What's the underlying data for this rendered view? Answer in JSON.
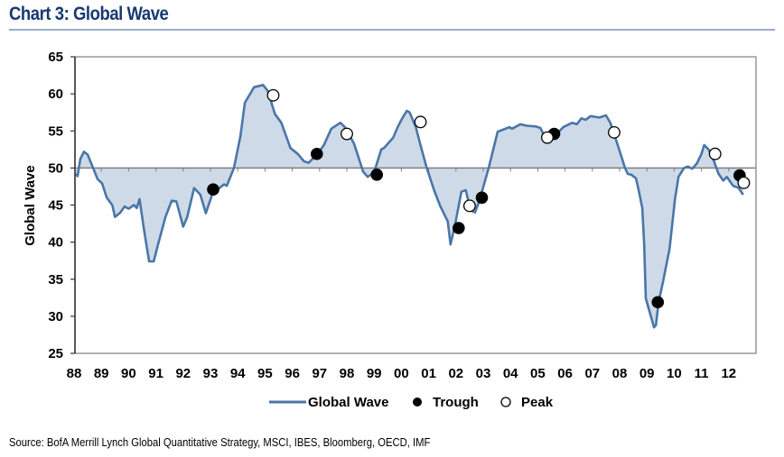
{
  "title": "Chart 3: Global Wave",
  "source": "Source: BofA Merrill Lynch Global Quantitative Strategy, MSCI, IBES, Bloomberg, OECD, IMF",
  "colors": {
    "title": "#17396f",
    "line": "#4a76a8",
    "fill": "#cfdae8",
    "axis": "#8c8c8c",
    "marker_fill_trough": "#000000",
    "marker_fill_peak": "#ffffff"
  },
  "chart_data": {
    "type": "area",
    "title": "Chart 3: Global Wave",
    "xlabel": "",
    "ylabel": "Global Wave",
    "ylim": [
      25,
      65
    ],
    "yticks": [
      25,
      30,
      35,
      40,
      45,
      50,
      55,
      60,
      65
    ],
    "xlim": [
      1988,
      2012.95
    ],
    "xticks": [
      1988,
      1989,
      1990,
      1991,
      1992,
      1993,
      1994,
      1995,
      1996,
      1997,
      1998,
      1999,
      2000,
      2001,
      2002,
      2003,
      2004,
      2005,
      2006,
      2007,
      2008,
      2009,
      2010,
      2011,
      2012
    ],
    "xtick_labels": [
      "88",
      "89",
      "90",
      "91",
      "92",
      "93",
      "94",
      "95",
      "96",
      "97",
      "98",
      "99",
      "00",
      "01",
      "02",
      "03",
      "04",
      "05",
      "06",
      "07",
      "08",
      "09",
      "10",
      "11",
      "12"
    ],
    "baseline": 50,
    "grid": false,
    "legend": {
      "placement": "bottom",
      "entries": [
        "Global Wave",
        "Trough",
        "Peak"
      ]
    },
    "series": [
      {
        "name": "Global Wave",
        "points": [
          [
            1988.03,
            49.2
          ],
          [
            1988.13,
            48.9
          ],
          [
            1988.23,
            51.2
          ],
          [
            1988.36,
            52.2
          ],
          [
            1988.5,
            51.8
          ],
          [
            1988.7,
            50.0
          ],
          [
            1988.86,
            48.5
          ],
          [
            1989.03,
            47.9
          ],
          [
            1989.2,
            46.0
          ],
          [
            1989.4,
            45.0
          ],
          [
            1989.5,
            43.4
          ],
          [
            1989.7,
            44.0
          ],
          [
            1989.85,
            44.8
          ],
          [
            1990.0,
            44.5
          ],
          [
            1990.2,
            45.0
          ],
          [
            1990.3,
            44.6
          ],
          [
            1990.4,
            45.8
          ],
          [
            1990.58,
            41.3
          ],
          [
            1990.75,
            37.4
          ],
          [
            1990.92,
            37.4
          ],
          [
            1991.08,
            39.7
          ],
          [
            1991.35,
            43.4
          ],
          [
            1991.58,
            45.6
          ],
          [
            1991.75,
            45.5
          ],
          [
            1992.0,
            42.1
          ],
          [
            1992.15,
            43.4
          ],
          [
            1992.4,
            47.3
          ],
          [
            1992.63,
            46.4
          ],
          [
            1992.83,
            43.9
          ],
          [
            1993.06,
            46.4
          ],
          [
            1993.23,
            47.0
          ],
          [
            1993.5,
            47.8
          ],
          [
            1993.6,
            47.6
          ],
          [
            1993.86,
            50.0
          ],
          [
            1994.1,
            54.3
          ],
          [
            1994.26,
            58.8
          ],
          [
            1994.6,
            60.9
          ],
          [
            1994.93,
            61.2
          ],
          [
            1995.1,
            60.4
          ],
          [
            1995.36,
            57.3
          ],
          [
            1995.6,
            56.1
          ],
          [
            1995.93,
            52.7
          ],
          [
            1996.2,
            51.9
          ],
          [
            1996.43,
            50.9
          ],
          [
            1996.6,
            50.7
          ],
          [
            1996.93,
            51.9
          ],
          [
            1997.16,
            53.1
          ],
          [
            1997.43,
            55.3
          ],
          [
            1997.76,
            56.1
          ],
          [
            1997.93,
            55.5
          ],
          [
            1998.26,
            53.3
          ],
          [
            1998.6,
            49.5
          ],
          [
            1998.76,
            48.8
          ],
          [
            1999.0,
            49.4
          ],
          [
            1999.26,
            52.5
          ],
          [
            1999.36,
            52.7
          ],
          [
            1999.7,
            54.1
          ],
          [
            1999.86,
            55.5
          ],
          [
            2000.03,
            56.7
          ],
          [
            2000.2,
            57.7
          ],
          [
            2000.3,
            57.5
          ],
          [
            2000.53,
            55.5
          ],
          [
            2000.7,
            53.1
          ],
          [
            2000.93,
            50.0
          ],
          [
            2001.2,
            47.0
          ],
          [
            2001.43,
            44.8
          ],
          [
            2001.7,
            42.8
          ],
          [
            2001.8,
            39.7
          ],
          [
            2001.96,
            42.2
          ],
          [
            2002.2,
            46.8
          ],
          [
            2002.36,
            47.0
          ],
          [
            2002.53,
            44.3
          ],
          [
            2002.7,
            44.0
          ],
          [
            2002.86,
            45.6
          ],
          [
            2003.2,
            50.0
          ],
          [
            2003.53,
            54.9
          ],
          [
            2003.96,
            55.5
          ],
          [
            2004.06,
            55.3
          ],
          [
            2004.36,
            55.9
          ],
          [
            2004.6,
            55.7
          ],
          [
            2004.93,
            55.6
          ],
          [
            2005.1,
            55.4
          ],
          [
            2005.26,
            54.1
          ],
          [
            2005.6,
            54.2
          ],
          [
            2005.93,
            55.5
          ],
          [
            2006.26,
            56.1
          ],
          [
            2006.43,
            55.9
          ],
          [
            2006.6,
            56.7
          ],
          [
            2006.76,
            56.5
          ],
          [
            2006.93,
            57.0
          ],
          [
            2007.26,
            56.8
          ],
          [
            2007.5,
            57.1
          ],
          [
            2007.66,
            56.1
          ],
          [
            2007.93,
            53.1
          ],
          [
            2008.2,
            50.0
          ],
          [
            2008.3,
            49.2
          ],
          [
            2008.43,
            49.1
          ],
          [
            2008.6,
            48.6
          ],
          [
            2008.7,
            47.0
          ],
          [
            2008.83,
            44.6
          ],
          [
            2008.9,
            39.7
          ],
          [
            2008.96,
            32.4
          ],
          [
            2009.1,
            30.6
          ],
          [
            2009.26,
            28.5
          ],
          [
            2009.33,
            28.8
          ],
          [
            2009.43,
            31.9
          ],
          [
            2009.6,
            34.8
          ],
          [
            2009.83,
            39.1
          ],
          [
            2010.03,
            45.8
          ],
          [
            2010.16,
            48.8
          ],
          [
            2010.36,
            50.0
          ],
          [
            2010.5,
            50.2
          ],
          [
            2010.66,
            49.9
          ],
          [
            2010.83,
            50.6
          ],
          [
            2011.0,
            51.9
          ],
          [
            2011.1,
            53.1
          ],
          [
            2011.26,
            52.5
          ],
          [
            2011.46,
            50.9
          ],
          [
            2011.63,
            49.2
          ],
          [
            2011.8,
            48.3
          ],
          [
            2011.93,
            48.8
          ],
          [
            2012.16,
            47.6
          ],
          [
            2012.36,
            47.3
          ],
          [
            2012.53,
            46.4
          ]
        ]
      }
    ],
    "troughs": [
      [
        1993.1,
        47.1
      ],
      [
        1996.9,
        51.9
      ],
      [
        1999.1,
        49.1
      ],
      [
        2002.1,
        41.9
      ],
      [
        2002.95,
        46.0
      ],
      [
        2005.6,
        54.6
      ],
      [
        2009.4,
        31.9
      ],
      [
        2012.4,
        49.0
      ]
    ],
    "peaks": [
      [
        1995.3,
        59.8
      ],
      [
        1998.0,
        54.6
      ],
      [
        2000.7,
        56.2
      ],
      [
        2002.5,
        44.9
      ],
      [
        2005.35,
        54.1
      ],
      [
        2007.8,
        54.8
      ],
      [
        2011.5,
        51.9
      ],
      [
        2012.55,
        48.0
      ]
    ]
  }
}
